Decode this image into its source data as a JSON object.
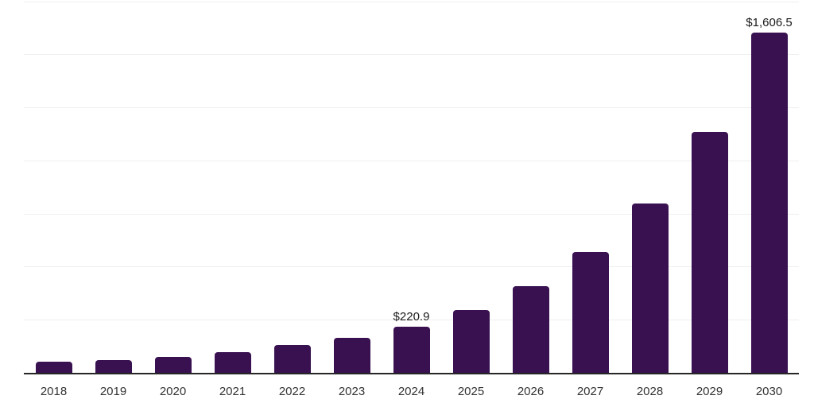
{
  "chart_data": {
    "type": "bar",
    "title": "",
    "xlabel": "",
    "ylabel": "",
    "categories": [
      "2018",
      "2019",
      "2020",
      "2021",
      "2022",
      "2023",
      "2024",
      "2025",
      "2026",
      "2027",
      "2028",
      "2029",
      "2030"
    ],
    "values": [
      55,
      65,
      79,
      101,
      134,
      168,
      220.9,
      298,
      412,
      572,
      802,
      1140,
      1606.5
    ],
    "data_labels": {
      "2024": "$220.9",
      "2030": "$1,606.5"
    },
    "ylim": [
      0,
      1750
    ],
    "gridline_step": 250,
    "grid": "horizontal",
    "legend_position": "none",
    "y_axis_labels_visible": false
  },
  "colors": {
    "bar": "#391150",
    "gridline": "#efefef",
    "axis_line": "#262626",
    "data_label_text": "#1a1a1a",
    "tick_label_text": "#333333",
    "background": "#ffffff"
  }
}
